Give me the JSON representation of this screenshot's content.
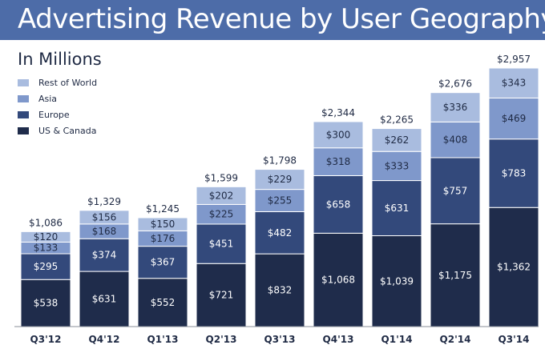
{
  "chart_data": {
    "type": "bar",
    "stacked": true,
    "title": "Advertising Revenue by User Geography",
    "subtitle": "In Millions",
    "categories": [
      "Q3'12",
      "Q4'12",
      "Q1'13",
      "Q2'13",
      "Q3'13",
      "Q4'13",
      "Q1'14",
      "Q2'14",
      "Q3'14"
    ],
    "series": [
      {
        "name": "US & Canada",
        "color": "#1f2c4b",
        "values": [
          538,
          631,
          552,
          721,
          832,
          1068,
          1039,
          1175,
          1362
        ],
        "labels": [
          "$538",
          "$631",
          "$552",
          "$721",
          "$832",
          "$1,068",
          "$1,039",
          "$1,175",
          "$1,362"
        ]
      },
      {
        "name": "Europe",
        "color": "#33497b",
        "values": [
          295,
          374,
          367,
          451,
          482,
          658,
          631,
          757,
          783
        ],
        "labels": [
          "$295",
          "$374",
          "$367",
          "$451",
          "$482",
          "$658",
          "$631",
          "$757",
          "$783"
        ]
      },
      {
        "name": "Asia",
        "color": "#7f98cb",
        "values": [
          133,
          168,
          176,
          225,
          255,
          318,
          333,
          408,
          469
        ],
        "labels": [
          "$133",
          "$168",
          "$176",
          "$225",
          "$255",
          "$318",
          "$333",
          "$408",
          "$469"
        ]
      },
      {
        "name": "Rest of World",
        "color": "#a9bcdf",
        "values": [
          120,
          156,
          150,
          202,
          229,
          300,
          262,
          336,
          343
        ],
        "labels": [
          "$120",
          "$156",
          "$150",
          "$202",
          "$229",
          "$300",
          "$262",
          "$336",
          "$343"
        ]
      }
    ],
    "totals": [
      1086,
      1329,
      1245,
      1599,
      1798,
      2344,
      2265,
      2676,
      2957
    ],
    "total_labels": [
      "$1,086",
      "$1,329",
      "$1,245",
      "$1,599",
      "$1,798",
      "$2,344",
      "$2,265",
      "$2,676",
      "$2,957"
    ],
    "legend": [
      "Rest of World",
      "Asia",
      "Europe",
      "US & Canada"
    ],
    "legend_position": "top-left",
    "ylim": [
      0,
      3000
    ],
    "grid": false
  }
}
